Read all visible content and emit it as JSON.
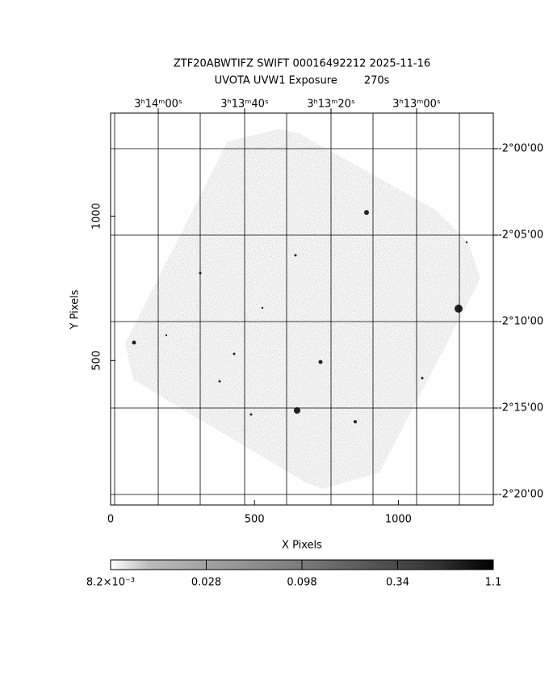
{
  "plot": {
    "title": "ZTF20ABWTIFZ SWIFT 00016492212 2025-11-16",
    "subtitle": "UVOTA UVW1 Exposure        270s",
    "x_label": "X Pixels",
    "y_label": "Y Pixels",
    "xlim": [
      0,
      1330
    ],
    "ylim": [
      0,
      1357
    ],
    "xticks": [
      0,
      500,
      1000
    ],
    "yticks": [
      500,
      1000
    ],
    "ra_labels": [
      "3ʰ14ᵐ00ˢ",
      "3ʰ13ᵐ40ˢ",
      "3ʰ13ᵐ20ˢ",
      "3ʰ13ᵐ00ˢ"
    ],
    "dec_labels": [
      "-2°00'00",
      "-2°05'00",
      "-2°10'00",
      "-2°15'00",
      "-2°20'00"
    ],
    "colorbar_labels": [
      "8.2×10⁻³",
      "0.028",
      "0.098",
      "0.34",
      "1.1"
    ]
  }
}
